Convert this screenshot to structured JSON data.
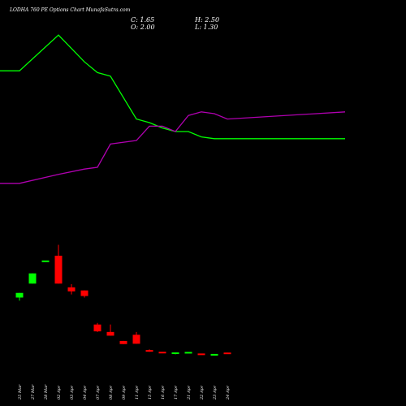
{
  "page": {
    "title": "LODHA 760 PE Options Chart MunafaSutra.com",
    "background": "#000000"
  },
  "ohlc": {
    "close_label": "C: 1.65",
    "open_label": "O: 2.00",
    "high_label": "H: 2.50",
    "low_label": "L: 1.30"
  },
  "colors": {
    "up": "#00ff00",
    "down": "#ff0000",
    "line_green": "#00ff00",
    "line_magenta": "#b000b0",
    "text": "#ffffff"
  },
  "chart_data": {
    "type": "candlestick",
    "title": "LODHA 760 PE Options Chart MunafaSutra.com",
    "categories": [
      "25 Mar",
      "27 Mar",
      "28 Mar",
      "02 Apr",
      "03 Apr",
      "04 Apr",
      "07 Apr",
      "08 Apr",
      "09 Apr",
      "11 Apr",
      "15 Apr",
      "16 Apr",
      "17 Apr",
      "21 Apr",
      "22 Apr",
      "23 Apr",
      "24 Apr"
    ],
    "price_range": [
      0,
      55
    ],
    "candles": [
      {
        "date": "25 Mar",
        "open": 24.5,
        "high": 26.0,
        "low": 23.5,
        "close": 26.0,
        "dir": "up"
      },
      {
        "date": "27 Mar",
        "open": 29.0,
        "high": 32.3,
        "low": 29.0,
        "close": 32.3,
        "dir": "up"
      },
      {
        "date": "28 Mar",
        "open": 36.0,
        "high": 36.4,
        "low": 36.0,
        "close": 36.4,
        "dir": "up"
      },
      {
        "date": "02 Apr",
        "open": 38.0,
        "high": 41.5,
        "low": 29.0,
        "close": 29.0,
        "dir": "down"
      },
      {
        "date": "03 Apr",
        "open": 27.8,
        "high": 28.8,
        "low": 25.5,
        "close": 26.5,
        "dir": "down"
      },
      {
        "date": "04 Apr",
        "open": 26.8,
        "high": 26.8,
        "low": 24.5,
        "close": 25.0,
        "dir": "down"
      },
      {
        "date": "07 Apr",
        "open": 15.8,
        "high": 16.3,
        "low": 13.4,
        "close": 13.6,
        "dir": "down"
      },
      {
        "date": "08 Apr",
        "open": 13.4,
        "high": 15.8,
        "low": 12.2,
        "close": 12.2,
        "dir": "down"
      },
      {
        "date": "09 Apr",
        "open": 10.5,
        "high": 10.5,
        "low": 9.5,
        "close": 9.5,
        "dir": "down"
      },
      {
        "date": "11 Apr",
        "open": 12.5,
        "high": 13.4,
        "low": 9.6,
        "close": 9.6,
        "dir": "down"
      },
      {
        "date": "15 Apr",
        "open": 7.5,
        "high": 7.8,
        "low": 7.0,
        "close": 7.1,
        "dir": "down"
      },
      {
        "date": "16 Apr",
        "open": 6.9,
        "high": 6.9,
        "low": 6.6,
        "close": 6.6,
        "dir": "down"
      },
      {
        "date": "17 Apr",
        "open": 6.3,
        "high": 6.8,
        "low": 6.2,
        "close": 6.8,
        "dir": "up"
      },
      {
        "date": "21 Apr",
        "open": 6.6,
        "high": 6.9,
        "low": 6.6,
        "close": 6.8,
        "dir": "up"
      },
      {
        "date": "22 Apr",
        "open": 6.3,
        "high": 6.4,
        "low": 6.1,
        "close": 6.1,
        "dir": "down"
      },
      {
        "date": "23 Apr",
        "open": 6.0,
        "high": 6.2,
        "low": 6.0,
        "close": 6.1,
        "dir": "up"
      },
      {
        "date": "24 Apr",
        "open": 6.6,
        "high": 6.7,
        "low": 6.3,
        "close": 6.4,
        "dir": "down"
      }
    ],
    "lines": [
      {
        "color": "#00ff00",
        "x": [
          "start",
          "25 Mar",
          "02 Apr",
          "04 Apr",
          "07 Apr",
          "08 Apr",
          "11 Apr",
          "15 Apr",
          "16 Apr",
          "17 Apr",
          "21 Apr",
          "22 Apr",
          "23 Apr",
          "24 Apr",
          "end"
        ],
        "values": [
          0.74,
          0.74,
          0.94,
          0.79,
          0.73,
          0.71,
          0.47,
          0.45,
          0.42,
          0.4,
          0.4,
          0.37,
          0.36,
          0.36,
          0.36
        ]
      },
      {
        "color": "#b000b0",
        "x": [
          "start",
          "25 Mar",
          "02 Apr",
          "04 Apr",
          "07 Apr",
          "08 Apr",
          "11 Apr",
          "15 Apr",
          "16 Apr",
          "17 Apr",
          "21 Apr",
          "22 Apr",
          "23 Apr",
          "24 Apr",
          "end"
        ],
        "values": [
          0.11,
          0.11,
          0.16,
          0.19,
          0.2,
          0.33,
          0.35,
          0.43,
          0.43,
          0.4,
          0.49,
          0.51,
          0.5,
          0.47,
          0.51
        ]
      }
    ]
  }
}
